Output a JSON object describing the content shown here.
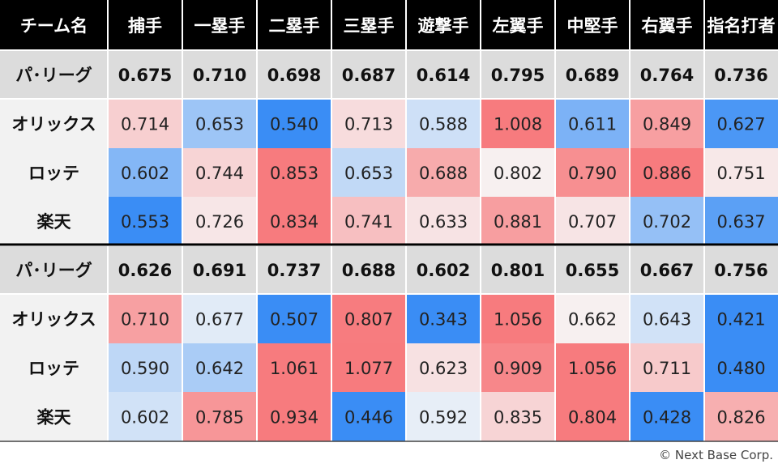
{
  "chart_data": {
    "type": "heatmap",
    "corner_label": "チーム名",
    "positions": [
      "捕手",
      "一塁手",
      "二塁手",
      "三塁手",
      "遊撃手",
      "左翼手",
      "中堅手",
      "右翼手",
      "指名打者"
    ],
    "blocks": [
      {
        "league_row": {
          "label": "パ･リーグ",
          "values": [
            "0.675",
            "0.710",
            "0.698",
            "0.687",
            "0.614",
            "0.795",
            "0.689",
            "0.764",
            "0.736"
          ]
        },
        "teams": [
          {
            "name": "オリックス",
            "values": [
              "0.714",
              "0.653",
              "0.540",
              "0.713",
              "0.588",
              "1.008",
              "0.611",
              "0.849",
              "0.627"
            ]
          },
          {
            "name": "ロッテ",
            "values": [
              "0.602",
              "0.744",
              "0.853",
              "0.653",
              "0.688",
              "0.802",
              "0.790",
              "0.886",
              "0.751"
            ]
          },
          {
            "name": "楽天",
            "values": [
              "0.553",
              "0.726",
              "0.834",
              "0.741",
              "0.633",
              "0.881",
              "0.707",
              "0.702",
              "0.637"
            ]
          }
        ]
      },
      {
        "league_row": {
          "label": "パ･リーグ",
          "values": [
            "0.626",
            "0.691",
            "0.737",
            "0.688",
            "0.602",
            "0.801",
            "0.655",
            "0.667",
            "0.756"
          ]
        },
        "teams": [
          {
            "name": "オリックス",
            "values": [
              "0.710",
              "0.677",
              "0.507",
              "0.807",
              "0.343",
              "1.056",
              "0.662",
              "0.643",
              "0.421"
            ]
          },
          {
            "name": "ロッテ",
            "values": [
              "0.590",
              "0.642",
              "1.061",
              "1.077",
              "0.623",
              "0.909",
              "1.056",
              "0.711",
              "0.480"
            ]
          },
          {
            "name": "楽天",
            "values": [
              "0.602",
              "0.785",
              "0.934",
              "0.446",
              "0.592",
              "0.835",
              "0.804",
              "0.428",
              "0.826"
            ]
          }
        ]
      }
    ],
    "colors": {
      "header_bg": "#000000",
      "league_bg": "#dcdcdc",
      "team_bg": "#f2f2f2",
      "high": "#f77b7e",
      "low": "#3a8df5",
      "neutral": "#f7f7f7"
    }
  },
  "footer": {
    "copyright": "© Next Base Corp."
  }
}
